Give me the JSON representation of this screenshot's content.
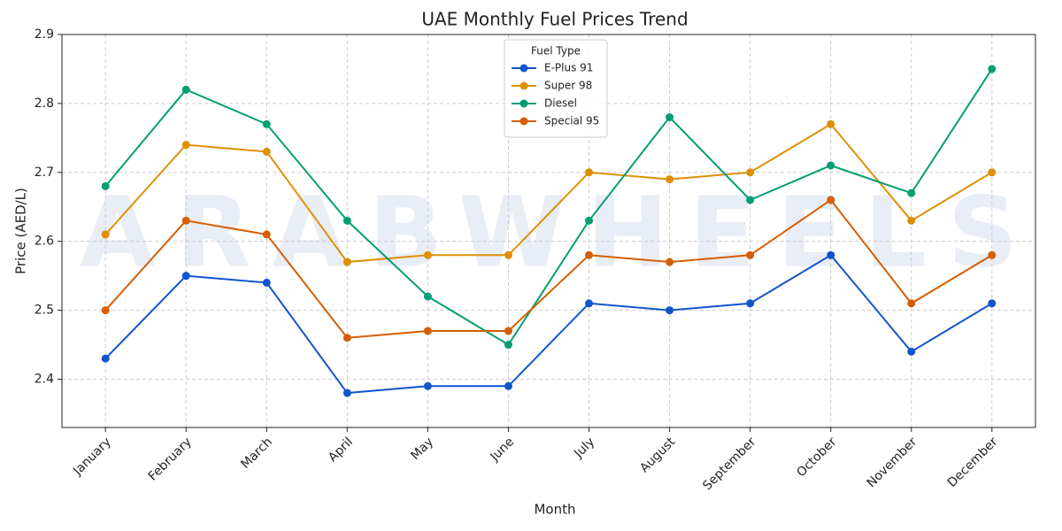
{
  "chart_data": {
    "type": "line",
    "title": "UAE Monthly Fuel Prices Trend",
    "watermark": "ARABWHEELS",
    "x_label": "Month",
    "y_label": "Price (AED/L)",
    "categories": [
      "January",
      "February",
      "March",
      "April",
      "May",
      "June",
      "July",
      "August",
      "September",
      "October",
      "November",
      "December"
    ],
    "series": [
      {
        "name": "E-Plus 91",
        "color": "#1155cc",
        "values": [
          2.43,
          2.55,
          2.54,
          2.38,
          2.39,
          2.39,
          2.51,
          2.5,
          2.51,
          2.58,
          2.44,
          2.51
        ]
      },
      {
        "name": "Super 98",
        "color": "#de8f05",
        "values": [
          2.61,
          2.74,
          2.73,
          2.57,
          2.58,
          2.58,
          2.7,
          2.69,
          2.7,
          2.77,
          2.63,
          2.7
        ]
      },
      {
        "name": "Diesel",
        "color": "#029e73",
        "values": [
          2.68,
          2.82,
          2.77,
          2.63,
          2.52,
          2.45,
          2.63,
          2.78,
          2.66,
          2.71,
          2.67,
          2.85
        ]
      },
      {
        "name": "Special 95",
        "color": "#d55e00",
        "values": [
          2.5,
          2.63,
          2.61,
          2.46,
          2.47,
          2.47,
          2.58,
          2.57,
          2.58,
          2.66,
          2.51,
          2.58
        ]
      }
    ],
    "legend_title": "Fuel Type",
    "legend_position": "upper center",
    "ylim": [
      2.33,
      2.9
    ],
    "yticks": [
      2.4,
      2.5,
      2.6,
      2.7,
      2.8,
      2.9
    ],
    "grid": true
  }
}
